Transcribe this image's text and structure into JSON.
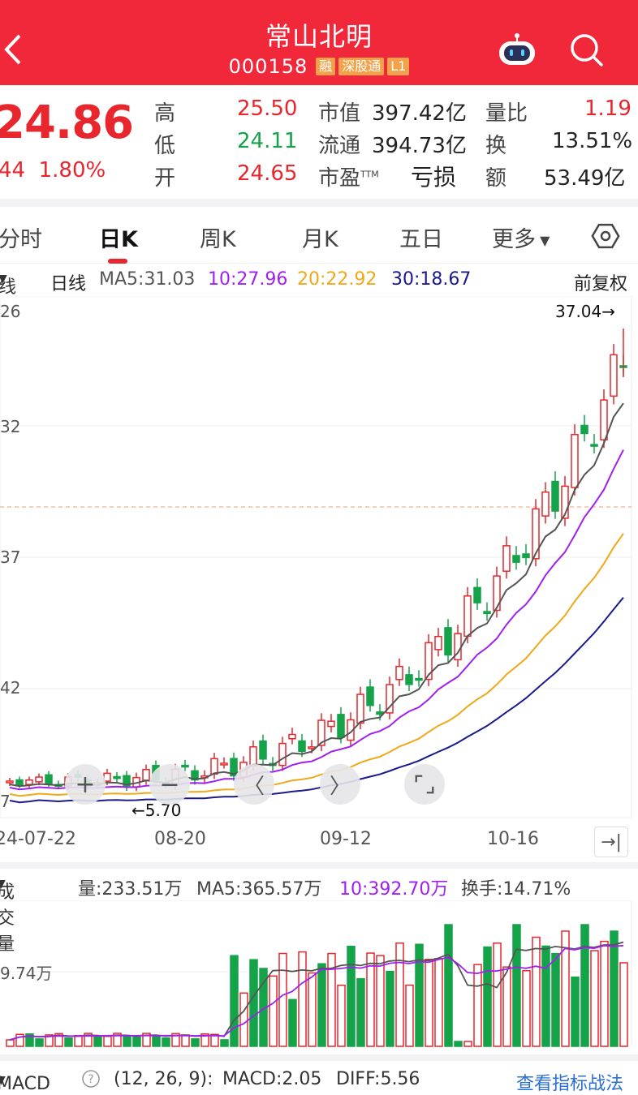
{
  "header": {
    "title": "常山北明",
    "code": "000158",
    "tags": [
      "融",
      "深股通",
      "L1"
    ]
  },
  "quote": {
    "price": "24.86",
    "change": "44",
    "change_pct": "1.80%",
    "rows": [
      {
        "l1": "高",
        "v1": "25.50",
        "l2": "市值",
        "v2": "397.42亿",
        "l3": "量比",
        "v3": "1.19"
      },
      {
        "l1": "低",
        "v1": "24.11",
        "l2": "流通",
        "v2": "394.73亿",
        "l3": "换",
        "v3": "13.51%"
      },
      {
        "l1": "开",
        "v1": "24.65",
        "l2": "市盈",
        "v2": "亏损",
        "l3": "额",
        "v3": "53.49亿"
      }
    ],
    "ttm": "TTM"
  },
  "tabs": [
    "分时",
    "日K",
    "周K",
    "月K",
    "五日",
    "更多"
  ],
  "ma_row": {
    "type": "线",
    "period": "日线",
    "ma5": "MA5:31.03",
    "ma10": "10:27.96",
    "ma20": "20:22.92",
    "ma30": "30:18.67",
    "adjust": "前复权"
  },
  "colors": {
    "up": "#e8262d",
    "down": "#15a34a",
    "ma5": "#555555",
    "ma10": "#a020f0",
    "ma20": "#f0a818",
    "ma30": "#1a1a8c"
  },
  "chart_data": {
    "type": "candlestick",
    "y_ticks": [
      "26",
      "32",
      "37",
      "42",
      "7"
    ],
    "x_labels": [
      "24-07-22",
      "08-20",
      "09-12",
      "10-16"
    ],
    "annotations": {
      "high": "37.04→",
      "low": "←5.70"
    }
  },
  "volume_row": {
    "type": "成交量",
    "vol": "量:233.51万",
    "ma5": "MA5:365.57万",
    "ma10": "10:392.70万",
    "turnover": "换手:14.71%",
    "y_label": "9.74万"
  },
  "macd_row": {
    "label": "MACD",
    "params": "(12, 26, 9):",
    "macd": "MACD:2.05",
    "diff": "DIFF:5.56",
    "link": "查看指标战法"
  }
}
